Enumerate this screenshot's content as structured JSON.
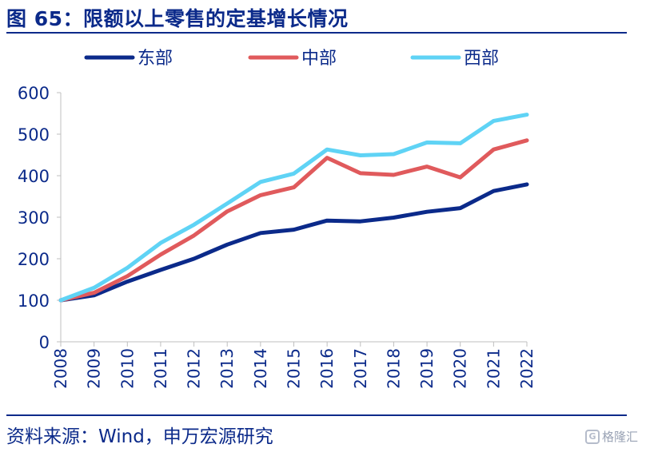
{
  "header": {
    "title": "图 65：限额以上零售的定基增长情况"
  },
  "footer": {
    "source": "资料来源：Wind，申万宏源研究",
    "watermark": "格隆汇",
    "watermark_logo": "G"
  },
  "chart_data": {
    "type": "line",
    "title": "",
    "xlabel": "",
    "ylabel": "",
    "categories": [
      "2008",
      "2009",
      "2010",
      "2011",
      "2012",
      "2013",
      "2014",
      "2015",
      "2016",
      "2017",
      "2018",
      "2019",
      "2020",
      "2021",
      "2022"
    ],
    "ylim": [
      0,
      600
    ],
    "yticks": [
      0,
      100,
      200,
      300,
      400,
      500,
      600
    ],
    "grid": false,
    "legend_position": "top",
    "series": [
      {
        "name": "东部",
        "color": "#0b2a8a",
        "values": [
          100,
          112,
          145,
          173,
          200,
          234,
          262,
          270,
          292,
          290,
          299,
          313,
          322,
          363,
          379
        ]
      },
      {
        "name": "中部",
        "color": "#e05a5c",
        "values": [
          100,
          118,
          158,
          210,
          256,
          314,
          353,
          372,
          443,
          406,
          402,
          422,
          396,
          463,
          485
        ]
      },
      {
        "name": "西部",
        "color": "#5fd3f5",
        "values": [
          100,
          130,
          178,
          238,
          282,
          333,
          385,
          405,
          463,
          449,
          452,
          480,
          478,
          532,
          547
        ]
      }
    ]
  }
}
